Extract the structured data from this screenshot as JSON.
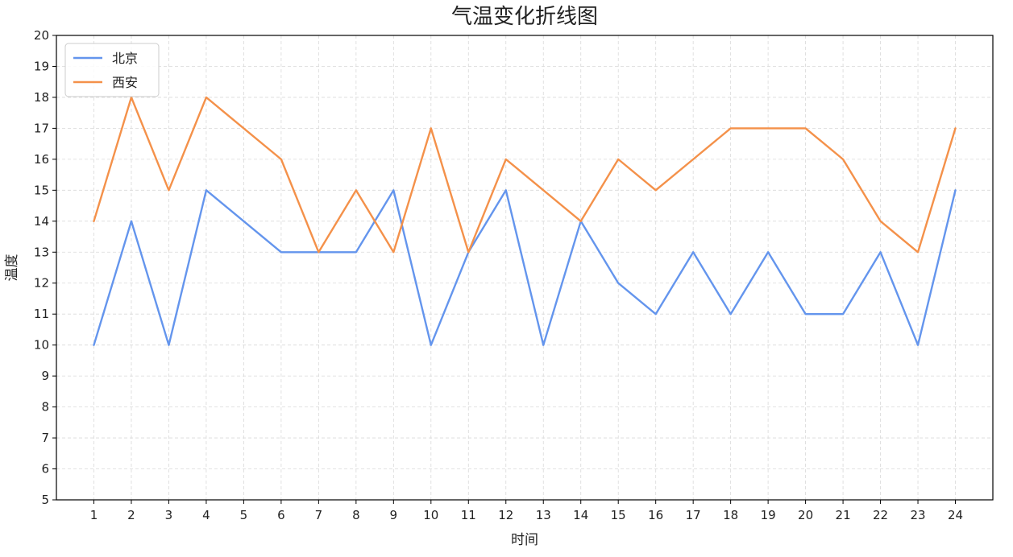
{
  "chart_data": {
    "type": "line",
    "title": "气温变化折线图",
    "xlabel": "时间",
    "ylabel": "温度",
    "x": [
      1,
      2,
      3,
      4,
      5,
      6,
      7,
      8,
      9,
      10,
      11,
      12,
      13,
      14,
      15,
      16,
      17,
      18,
      19,
      20,
      21,
      22,
      23,
      24
    ],
    "xlim": [
      0,
      25
    ],
    "ylim": [
      5,
      20
    ],
    "y_ticks": [
      5,
      6,
      7,
      8,
      9,
      10,
      11,
      12,
      13,
      14,
      15,
      16,
      17,
      18,
      19,
      20
    ],
    "grid": true,
    "legend_position": "top-left",
    "series": [
      {
        "name": "北京",
        "color": "#6495ED",
        "values": [
          10,
          14,
          10,
          15,
          14,
          13,
          13,
          13,
          15,
          10,
          13,
          15,
          10,
          14,
          12,
          11,
          13,
          11,
          13,
          11,
          11,
          13,
          10,
          15
        ]
      },
      {
        "name": "西安",
        "color": "#F4914A",
        "values": [
          14,
          18,
          15,
          18,
          17,
          16,
          13,
          15,
          13,
          17,
          13,
          16,
          15,
          14,
          16,
          15,
          16,
          17,
          17,
          17,
          16,
          14,
          13,
          17
        ]
      }
    ]
  }
}
